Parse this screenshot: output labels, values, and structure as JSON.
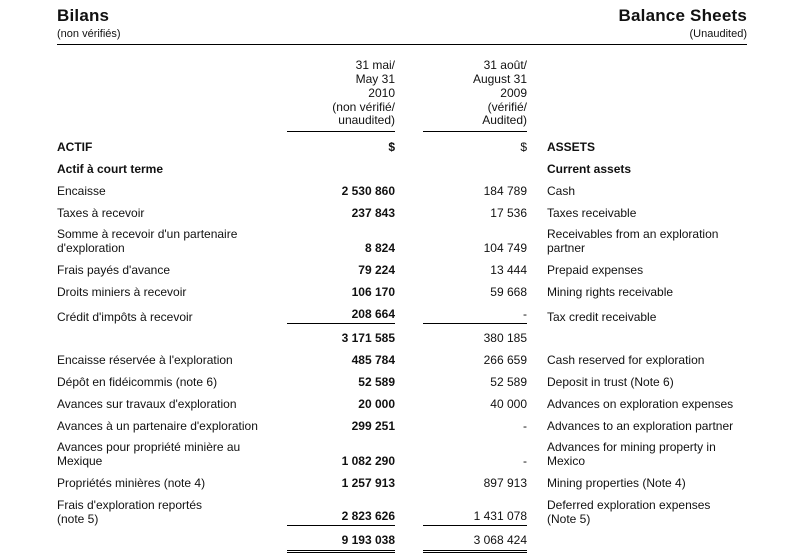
{
  "header": {
    "title_fr": "Bilans",
    "subtitle_fr": "(non vérifiés)",
    "title_en": "Balance Sheets",
    "subtitle_en": "(Unaudited)"
  },
  "columns": {
    "col1": {
      "lines": [
        "31 mai/",
        "May 31",
        "2010",
        "(non vérifié/",
        "unaudited)"
      ],
      "currency": "$"
    },
    "col2": {
      "lines": [
        "31 août/",
        "August 31",
        "2009",
        "(vérifié/",
        "Audited)"
      ],
      "currency": "$"
    }
  },
  "rows": [
    {
      "fr": "ACTIF",
      "en": "ASSETS",
      "v2010": "$",
      "v2009": "$"
    },
    {
      "fr": "Actif à court terme",
      "en": "Current assets"
    },
    {
      "fr": "Encaisse",
      "en": "Cash",
      "v2010": "2 530 860",
      "v2009": "184 789"
    },
    {
      "fr": "Taxes à recevoir",
      "en": "Taxes receivable",
      "v2010": "237 843",
      "v2009": "17 536"
    },
    {
      "fr": [
        "Somme à recevoir d'un partenaire",
        "d'exploration"
      ],
      "en": [
        "Receivables from an exploration",
        "partner"
      ],
      "v2010": "8 824",
      "v2009": "104 749"
    },
    {
      "fr": "Frais payés d'avance",
      "en": "Prepaid expenses",
      "v2010": "79 224",
      "v2009": "13 444"
    },
    {
      "fr": "Droits miniers à recevoir",
      "en": "Mining rights receivable",
      "v2010": "106 170",
      "v2009": "59 668"
    },
    {
      "fr": "Crédit d'impôts à recevoir",
      "en": "Tax credit receivable",
      "v2010": "208 664",
      "v2009": "-"
    },
    {
      "fr": "",
      "en": "",
      "v2010": "3 171 585",
      "v2009": "380 185"
    },
    {
      "fr": "Encaisse réservée à l'exploration",
      "en": "Cash reserved for exploration",
      "v2010": "485 784",
      "v2009": "266 659"
    },
    {
      "fr": "Dépôt en fidéicommis (note 6)",
      "en": "Deposit in trust (Note 6)",
      "v2010": "52 589",
      "v2009": "52 589"
    },
    {
      "fr": "Avances sur travaux d'exploration",
      "en": "Advances on exploration expenses",
      "v2010": "20 000",
      "v2009": "40 000"
    },
    {
      "fr": "Avances à un partenaire d'exploration",
      "en": "Advances to an exploration partner",
      "v2010": "299 251",
      "v2009": "-"
    },
    {
      "fr": [
        "Avances pour propriété minière au",
        "Mexique"
      ],
      "en": [
        "Advances for mining property in",
        "Mexico"
      ],
      "v2010": "1 082 290",
      "v2009": "-"
    },
    {
      "fr": "Propriétés minières (note 4)",
      "en": "Mining properties (Note 4)",
      "v2010": "1 257 913",
      "v2009": "897 913"
    },
    {
      "fr": [
        "Frais d'exploration reportés",
        "(note 5)"
      ],
      "en": [
        "Deferred exploration expenses",
        "(Note 5)"
      ],
      "v2010": "2 823 626",
      "v2009": "1 431 078"
    },
    {
      "fr": "",
      "en": "",
      "v2010": "9 193 038",
      "v2009": "3 068 424"
    }
  ]
}
